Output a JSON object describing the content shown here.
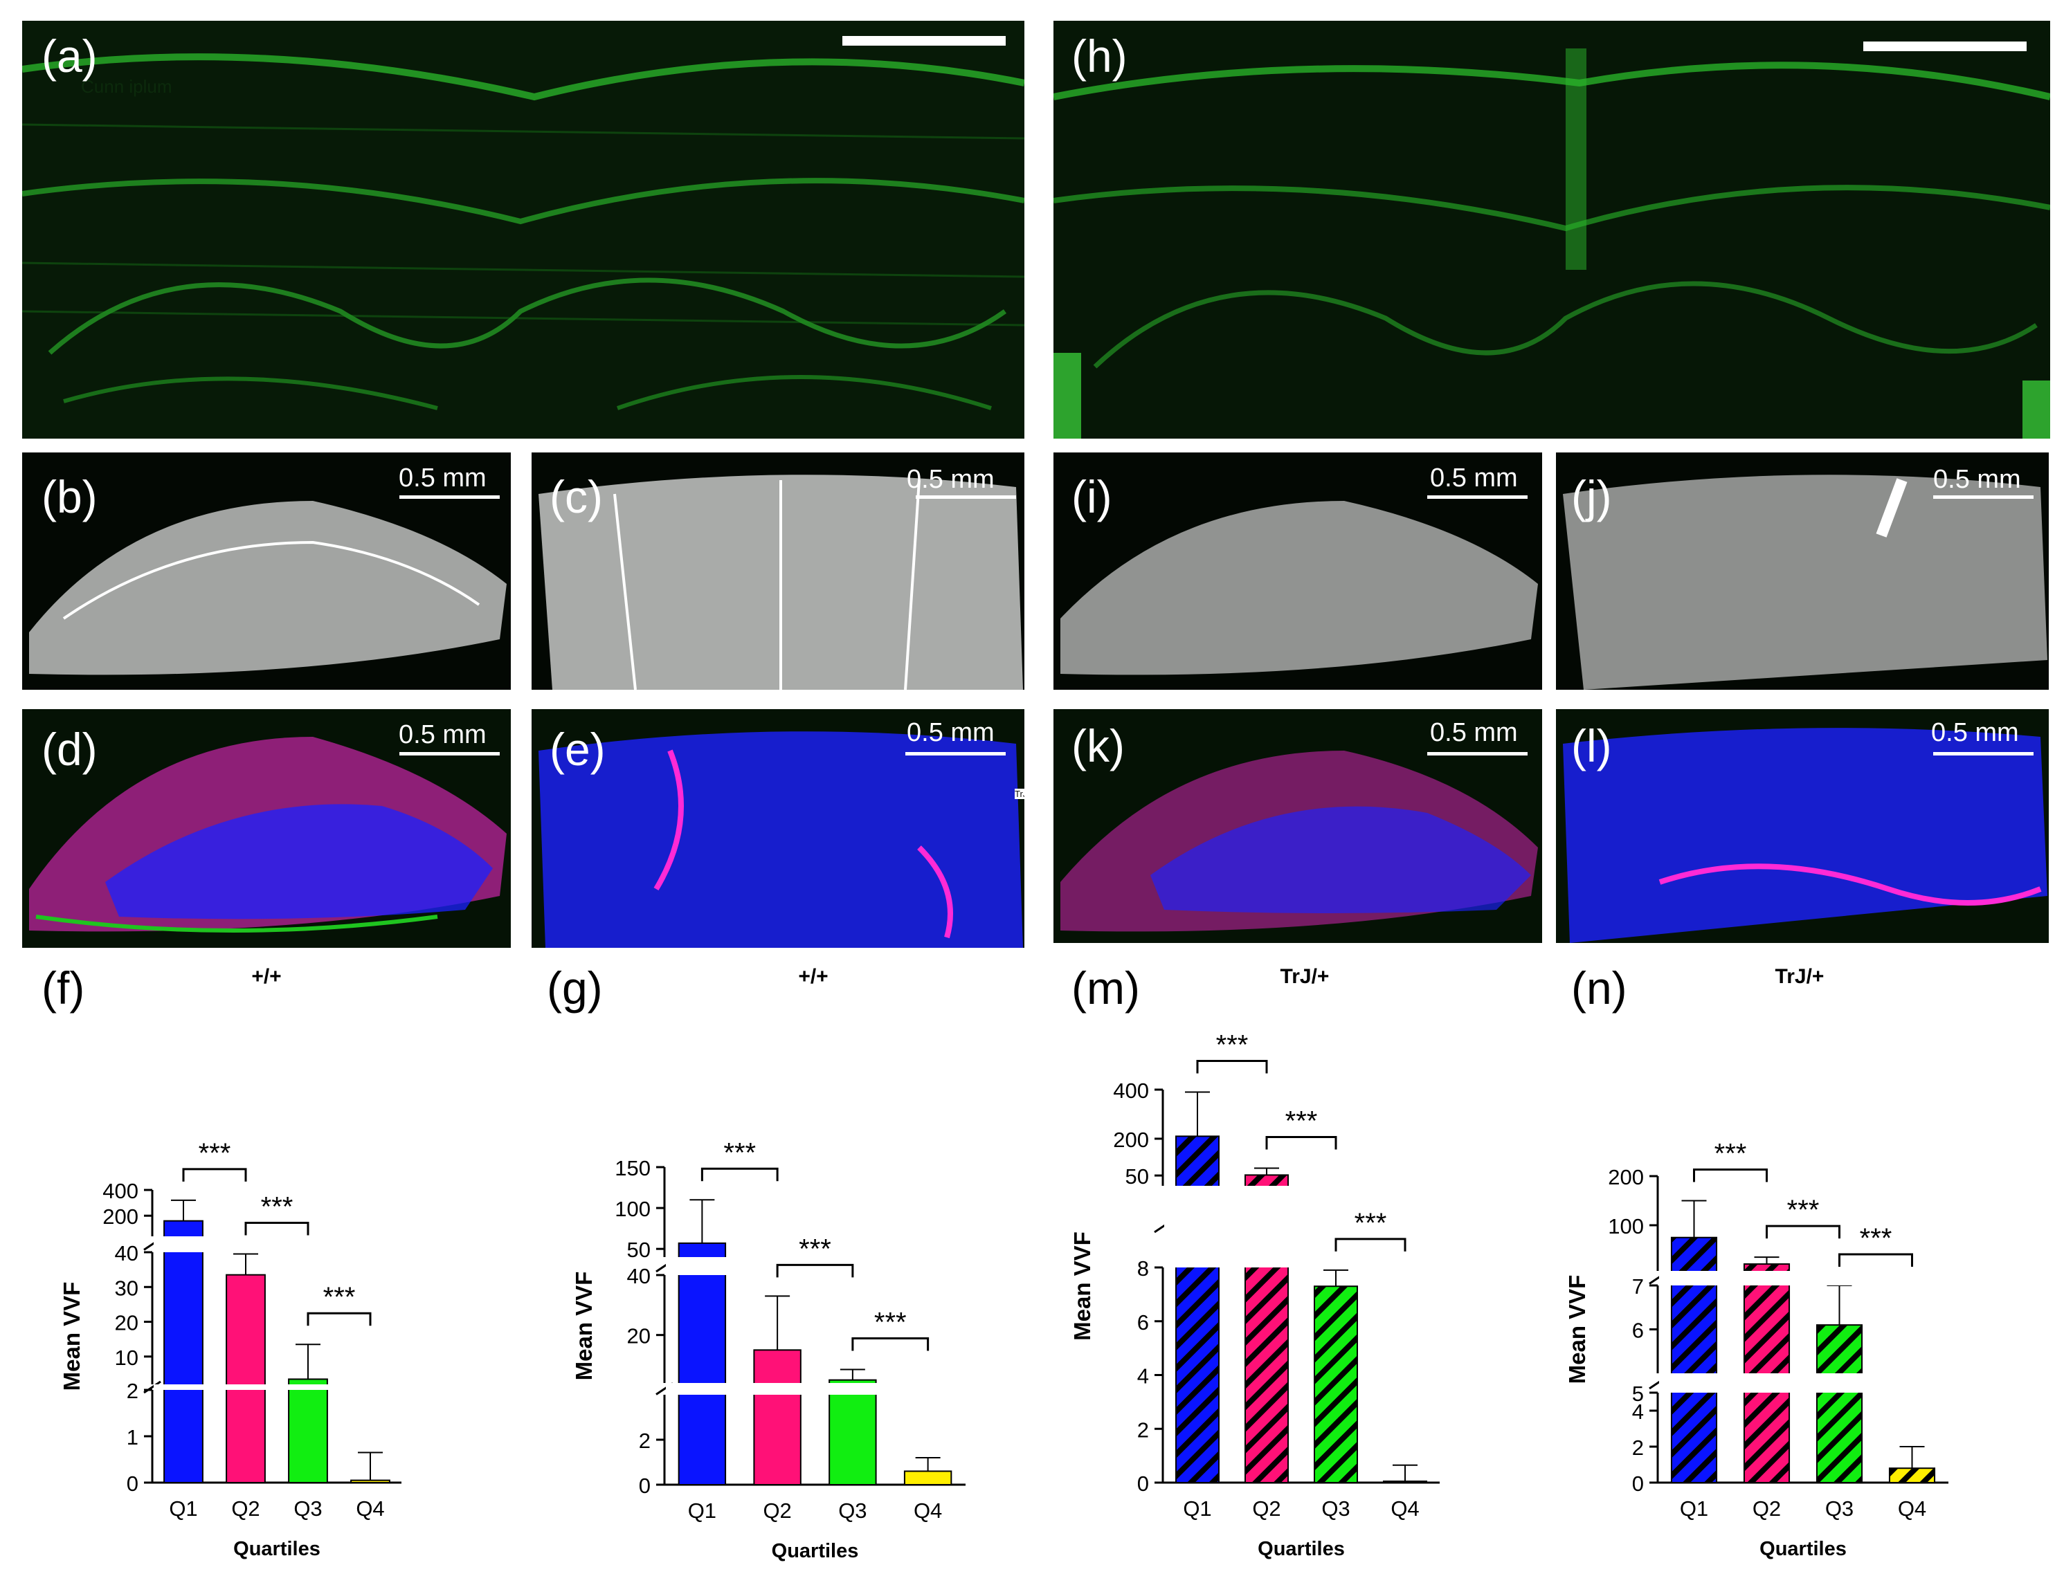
{
  "figure": {
    "panel_labels": {
      "a": "(a)",
      "b": "(b)",
      "c": "(c)",
      "d": "(d)",
      "e": "(e)",
      "f": "(f)",
      "g": "(g)",
      "h": "(h)",
      "i": "(i)",
      "j": "(j)",
      "k": "(k)",
      "l": "(l)",
      "m": "(m)",
      "n": "(n)"
    },
    "scale_label": "0.5 mm",
    "overlay_text_a": "Cunn iplum",
    "overlay_text_e": "TrJ/+",
    "genotype_left": "+/+",
    "genotype_right": "TrJ/+",
    "colors": {
      "tissue_green": "#1fc41f",
      "q1": "#0a14ff",
      "q2": "#ff1177",
      "q3": "#11ee11",
      "q4": "#ffee00"
    }
  },
  "chart_data": [
    {
      "panel": "(f)",
      "type": "bar",
      "pattern": "solid",
      "categories": [
        "Q1",
        "Q2",
        "Q3",
        "Q4"
      ],
      "values": [
        160,
        33.5,
        3.5,
        0.05
      ],
      "error_plus": [
        160,
        6,
        10,
        0.6
      ],
      "xlabel": "Quartiles",
      "ylabel": "Mean VVF",
      "broken_axis": true,
      "segments": [
        {
          "range": [
            0,
            2
          ],
          "ticks": [
            "0",
            "1",
            "2"
          ]
        },
        {
          "range": [
            2,
            40
          ],
          "ticks": [
            "10",
            "20",
            "30",
            "40"
          ]
        },
        {
          "range": [
            40,
            400
          ],
          "ticks": [
            "200",
            "400"
          ]
        }
      ],
      "significance": [
        "***",
        "***",
        "***"
      ],
      "significance_pairs": [
        [
          "Q1",
          "Q2"
        ],
        [
          "Q2",
          "Q3"
        ],
        [
          "Q3",
          "Q4"
        ]
      ]
    },
    {
      "panel": "(g)",
      "type": "bar",
      "pattern": "solid",
      "categories": [
        "Q1",
        "Q2",
        "Q3",
        "Q4"
      ],
      "values": [
        57,
        15,
        5,
        0.6
      ],
      "error_plus": [
        53,
        18,
        3.5,
        0.6
      ],
      "xlabel": "Quartiles",
      "ylabel": "Mean VVF",
      "broken_axis": true,
      "segments": [
        {
          "range": [
            0,
            4
          ],
          "ticks": [
            "0",
            "2"
          ]
        },
        {
          "range": [
            4,
            40
          ],
          "ticks": [
            "20",
            "40"
          ]
        },
        {
          "range": [
            40,
            150
          ],
          "ticks": [
            "50",
            "100",
            "150"
          ]
        }
      ],
      "significance": [
        "***",
        "***",
        "***"
      ],
      "significance_pairs": [
        [
          "Q1",
          "Q2"
        ],
        [
          "Q2",
          "Q3"
        ],
        [
          "Q3",
          "Q4"
        ]
      ]
    },
    {
      "panel": "(m)",
      "type": "bar",
      "pattern": "hatched",
      "categories": [
        "Q1",
        "Q2",
        "Q3",
        "Q4"
      ],
      "values": [
        210,
        52,
        7.3,
        0.05
      ],
      "error_plus": [
        180,
        28,
        0.6,
        0.6
      ],
      "xlabel": "Quartiles",
      "ylabel": "Mean VVF",
      "broken_axis": true,
      "segments": [
        {
          "range": [
            0,
            8
          ],
          "ticks": [
            "0",
            "2",
            "4",
            "6",
            "8"
          ]
        },
        {
          "range": [
            8,
            400
          ],
          "ticks": [
            "50",
            "200",
            "400"
          ]
        }
      ],
      "significance": [
        "***",
        "***",
        "***"
      ],
      "significance_pairs": [
        [
          "Q1",
          "Q2"
        ],
        [
          "Q2",
          "Q3"
        ],
        [
          "Q3",
          "Q4"
        ]
      ]
    },
    {
      "panel": "(n)",
      "type": "bar",
      "pattern": "hatched",
      "categories": [
        "Q1",
        "Q2",
        "Q3",
        "Q4"
      ],
      "values": [
        75,
        21,
        6.1,
        0.8
      ],
      "error_plus": [
        75,
        14,
        0.9,
        1.2
      ],
      "xlabel": "Quartiles",
      "ylabel": "Mean VVF",
      "broken_axis": true,
      "segments": [
        {
          "range": [
            0,
            5
          ],
          "ticks": [
            "0",
            "2",
            "4"
          ]
        },
        {
          "range": [
            5,
            7
          ],
          "ticks": [
            "5",
            "6",
            "7"
          ]
        },
        {
          "range": [
            7,
            200
          ],
          "ticks": [
            "100",
            "200"
          ]
        }
      ],
      "significance": [
        "***",
        "***",
        "***"
      ],
      "significance_pairs": [
        [
          "Q1",
          "Q2"
        ],
        [
          "Q2",
          "Q3"
        ],
        [
          "Q3",
          "Q4"
        ]
      ]
    }
  ]
}
